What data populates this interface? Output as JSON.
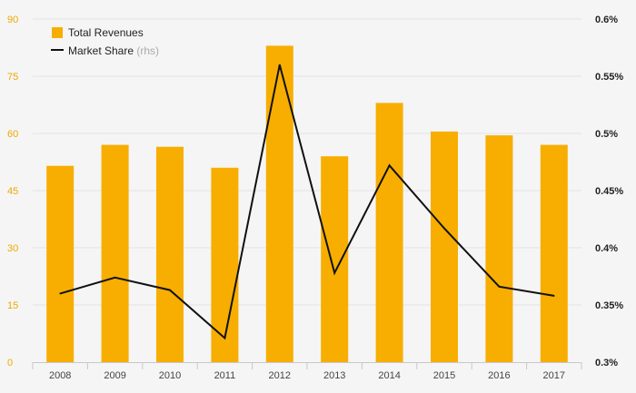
{
  "chart_data": {
    "type": "bar",
    "categories": [
      "2008",
      "2009",
      "2010",
      "2011",
      "2012",
      "2013",
      "2014",
      "2015",
      "2016",
      "2017"
    ],
    "series": [
      {
        "name": "Total Revenues",
        "type": "bar",
        "axis": "left",
        "color": "#f7ae00",
        "values": [
          51.5,
          57,
          56.5,
          51,
          83,
          54,
          68,
          60.5,
          59.5,
          57
        ]
      },
      {
        "name": "Market Share",
        "type": "line",
        "axis": "right",
        "color": "#111111",
        "values": [
          0.36,
          0.374,
          0.363,
          0.321,
          0.56,
          0.378,
          0.472,
          0.417,
          0.366,
          0.358
        ]
      }
    ],
    "legend": {
      "position": "top-left",
      "items": [
        {
          "label": "Total Revenues",
          "suffix": ""
        },
        {
          "label": "Market Share",
          "suffix": "(rhs)"
        }
      ]
    },
    "y_left": {
      "ylim": [
        0,
        90
      ],
      "ticks": [
        0,
        15,
        30,
        45,
        60,
        75,
        90
      ],
      "tick_labels": [
        "0",
        "15",
        "30",
        "45",
        "60",
        "75",
        "90"
      ],
      "color": "#f0a800"
    },
    "y_right": {
      "ylim": [
        0.3,
        0.6
      ],
      "ticks": [
        0.3,
        0.35,
        0.4,
        0.45,
        0.5,
        0.55,
        0.6
      ],
      "tick_labels": [
        "0.3%",
        "0.35%",
        "0.4%",
        "0.45%",
        "0.5%",
        "0.55%",
        "0.6%"
      ]
    },
    "grid": true,
    "title": "",
    "xlabel": "",
    "ylabel": ""
  }
}
